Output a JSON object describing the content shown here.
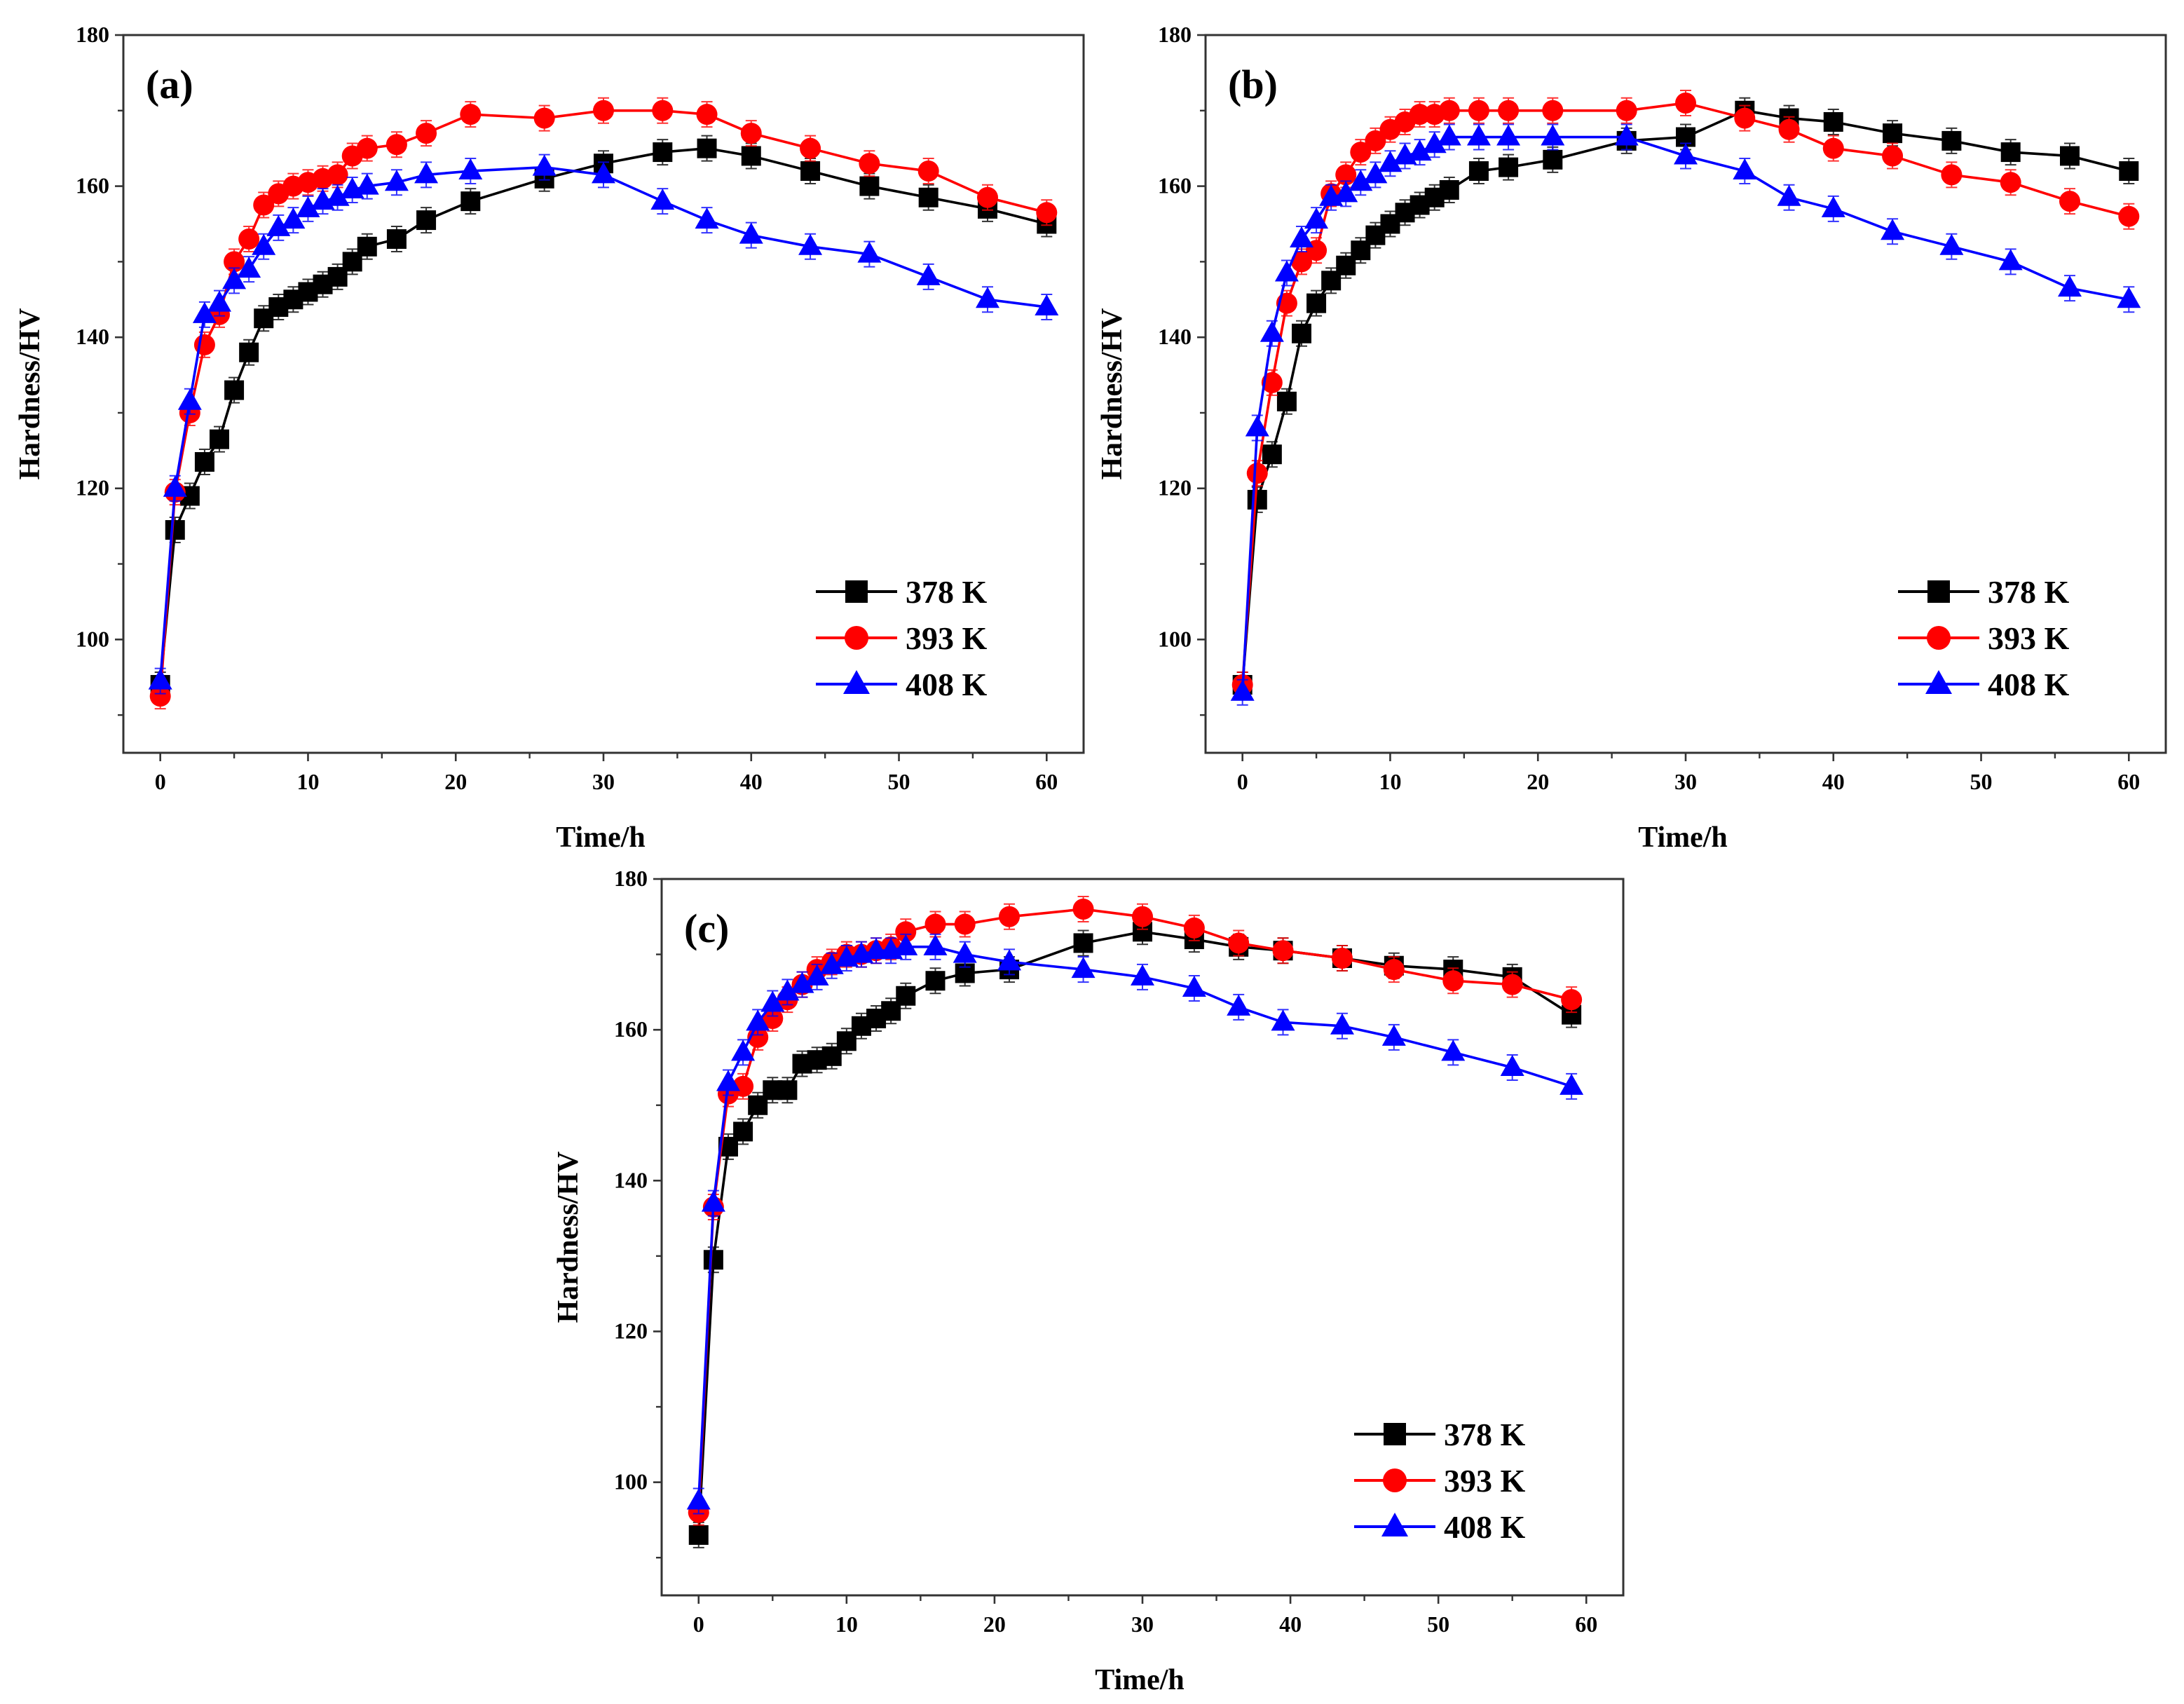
{
  "chart_data": [
    {
      "type": "line",
      "panel_label": "(a)",
      "xlabel": "Time/h",
      "ylabel": "Hardness/HV",
      "xlim": [
        -2.5,
        62.5
      ],
      "ylim": [
        85,
        180
      ],
      "xticks": [
        0,
        10,
        20,
        30,
        40,
        50,
        60
      ],
      "yticks": [
        100,
        120,
        140,
        160,
        180
      ],
      "legend_position": "bottom-right",
      "x": [
        0,
        1,
        2,
        3,
        4,
        5,
        6,
        7,
        8,
        9,
        10,
        11,
        12,
        13,
        14,
        16,
        18,
        21,
        26,
        30,
        34,
        37,
        40,
        44,
        48,
        52,
        56,
        60
      ],
      "series": [
        {
          "name": "378 K",
          "color": "#000000",
          "marker": "square",
          "values": [
            94,
            114.5,
            119,
            123.5,
            126.5,
            133,
            138,
            142.5,
            144,
            145,
            146,
            147,
            148,
            150,
            152,
            153,
            155.5,
            158,
            161,
            163,
            164.5,
            165,
            164,
            162,
            160,
            158.5,
            157,
            155
          ]
        },
        {
          "name": "393 K",
          "color": "#ff0000",
          "marker": "circle",
          "values": [
            92.5,
            119.5,
            130,
            139,
            143,
            150,
            153,
            157.5,
            159,
            160,
            160.5,
            161,
            161.5,
            164,
            165,
            165.5,
            167,
            169.5,
            169,
            170,
            170,
            169.5,
            167,
            165,
            163,
            162,
            158.5,
            156.5
          ]
        },
        {
          "name": "408 K",
          "color": "#0000ff",
          "marker": "triangle",
          "values": [
            94.5,
            120,
            131.5,
            143,
            144.5,
            147.5,
            149,
            152,
            154.5,
            155.5,
            157,
            158,
            158.5,
            159.5,
            160,
            160.5,
            161.5,
            162,
            162.5,
            161.5,
            158,
            155.5,
            153.5,
            152,
            151,
            148,
            145,
            144
          ]
        }
      ]
    },
    {
      "type": "line",
      "panel_label": "(b)",
      "xlabel": "Time/h",
      "ylabel": "Hardness/HV",
      "xlim": [
        -2.5,
        62.5
      ],
      "ylim": [
        85,
        180
      ],
      "xticks": [
        0,
        10,
        20,
        30,
        40,
        50,
        60
      ],
      "yticks": [
        100,
        120,
        140,
        160,
        180
      ],
      "legend_position": "bottom-right",
      "x": [
        0,
        1,
        2,
        3,
        4,
        5,
        6,
        7,
        8,
        9,
        10,
        11,
        12,
        13,
        14,
        16,
        18,
        21,
        26,
        30,
        34,
        37,
        40,
        44,
        48,
        52,
        56,
        60
      ],
      "series": [
        {
          "name": "378 K",
          "color": "#000000",
          "marker": "square",
          "values": [
            94,
            118.5,
            124.5,
            131.5,
            140.5,
            144.5,
            147.5,
            149.5,
            151.5,
            153.5,
            155,
            156.5,
            157.5,
            158.5,
            159.5,
            162,
            162.5,
            163.5,
            166,
            166.5,
            170,
            169,
            168.5,
            167,
            166,
            164.5,
            164,
            162
          ]
        },
        {
          "name": "393 K",
          "color": "#ff0000",
          "marker": "circle",
          "values": [
            94,
            122,
            134,
            144.5,
            150,
            151.5,
            159,
            161.5,
            164.5,
            166,
            167.5,
            168.5,
            169.5,
            169.5,
            170,
            170,
            170,
            170,
            170,
            171,
            169,
            167.5,
            165,
            164,
            161.5,
            160.5,
            158,
            156
          ]
        },
        {
          "name": "408 K",
          "color": "#0000ff",
          "marker": "triangle",
          "values": [
            93,
            128,
            140.5,
            148.5,
            153,
            155.5,
            158.5,
            159,
            160.5,
            161.5,
            163,
            164,
            164.5,
            165.5,
            166.5,
            166.5,
            166.5,
            166.5,
            166.5,
            164,
            162,
            158.5,
            157,
            154,
            152,
            150,
            146.5,
            145
          ]
        }
      ]
    },
    {
      "type": "line",
      "panel_label": "(c)",
      "xlabel": "Time/h",
      "ylabel": "Hardness/HV",
      "xlim": [
        -2.5,
        62.5
      ],
      "ylim": [
        85,
        180
      ],
      "xticks": [
        0,
        10,
        20,
        30,
        40,
        50,
        60
      ],
      "yticks": [
        100,
        120,
        140,
        160,
        180
      ],
      "legend_position": "bottom-right",
      "x": [
        0,
        1,
        2,
        3,
        4,
        5,
        6,
        7,
        8,
        9,
        10,
        11,
        12,
        13,
        14,
        16,
        18,
        21,
        26,
        30,
        33.5,
        36.5,
        39.5,
        43.5,
        47,
        51,
        55,
        59
      ],
      "series": [
        {
          "name": "378 K",
          "color": "#000000",
          "marker": "square",
          "values": [
            93,
            129.5,
            144.5,
            146.5,
            150,
            152,
            152,
            155.5,
            156,
            156.5,
            158.5,
            160.5,
            161.5,
            162.5,
            164.5,
            166.5,
            167.5,
            168,
            171.5,
            173,
            172,
            171,
            170.5,
            169.5,
            168.5,
            168,
            167,
            162
          ]
        },
        {
          "name": "393 K",
          "color": "#ff0000",
          "marker": "circle",
          "values": [
            96,
            136.5,
            151.5,
            152.5,
            159,
            161.5,
            164,
            166,
            168,
            169,
            170,
            170,
            170.5,
            171,
            173,
            174,
            174,
            175,
            176,
            175,
            173.5,
            171.5,
            170.5,
            169.5,
            168,
            166.5,
            166,
            164
          ]
        },
        {
          "name": "408 K",
          "color": "#0000ff",
          "marker": "triangle",
          "values": [
            97.5,
            137,
            153,
            157,
            161,
            163.5,
            165,
            166,
            167,
            168.5,
            169.5,
            170,
            170.5,
            170.5,
            171,
            171,
            170,
            169,
            168,
            167,
            165.5,
            163,
            161,
            160.5,
            159,
            157,
            155,
            152.5
          ]
        }
      ]
    }
  ]
}
